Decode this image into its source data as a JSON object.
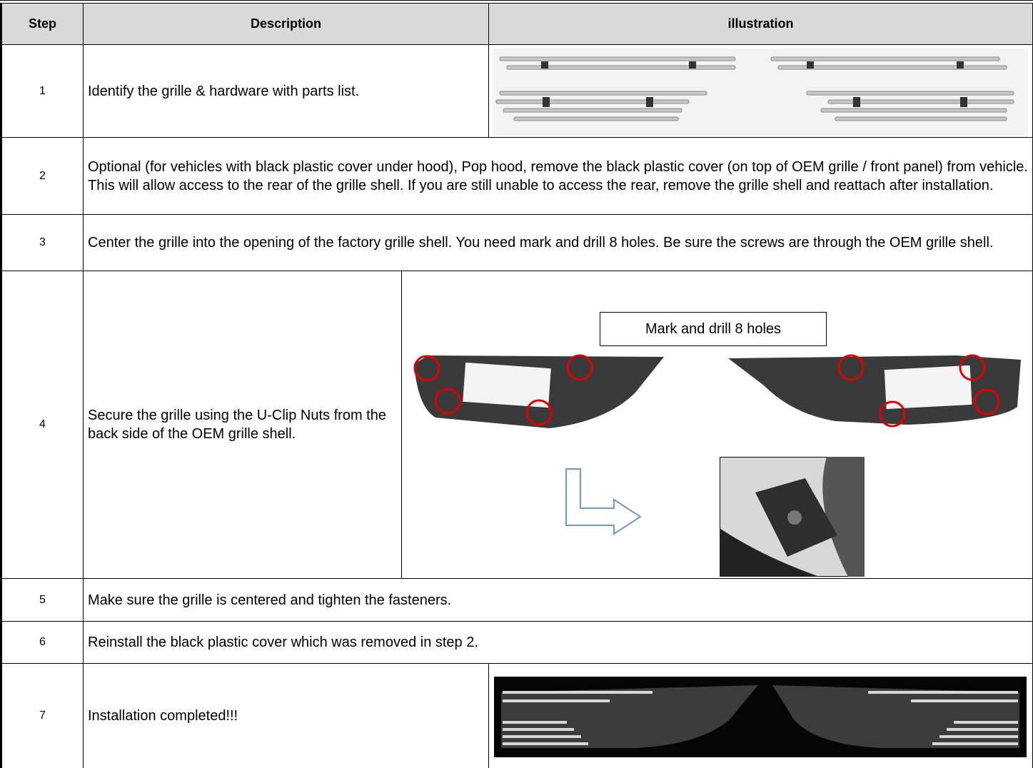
{
  "table": {
    "header": [
      "Step",
      "Description",
      "illustration"
    ],
    "rows": [
      {
        "step": "1",
        "description": "Identify the grille & hardware with parts list."
      },
      {
        "step": "2",
        "description": "Optional (for vehicles with black plastic cover under hood), Pop hood, remove the black plastic cover (on top of OEM grille / front panel) from vehicle. This will allow access to the rear of the grille shell. If you are still unable to access the rear, remove the grille shell and reattach after installation."
      },
      {
        "step": "3",
        "description": "Center the grille into the opening of the factory grille shell. You need mark and drill 8 holes. Be sure the screws are through the OEM grille shell."
      },
      {
        "step": "4",
        "description": "Secure the grille using the  U-Clip Nuts from the back side of the OEM grille shell.",
        "callout": "Mark and drill 8 holes"
      },
      {
        "step": "5",
        "description": "Make sure the grille is centered and tighten the fasteners."
      },
      {
        "step": "6",
        "description": "Reinstall the black plastic cover which was removed in step 2."
      },
      {
        "step": "7",
        "description": "Installation completed!!!"
      }
    ]
  }
}
